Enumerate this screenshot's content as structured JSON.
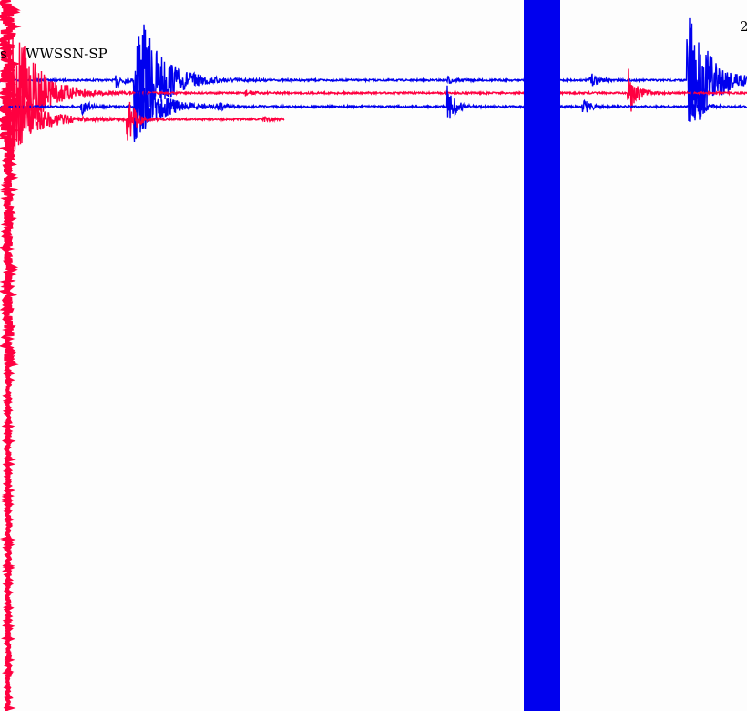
{
  "chart_data": {
    "type": "line",
    "title": "",
    "station_label": "WWSSN-SP",
    "left_fragment": "s",
    "corner_label": "2",
    "series_colors": [
      "#0000ee",
      "#ff0040"
    ],
    "grid": false,
    "traces": [
      {
        "color": "#0000ee"
      },
      {
        "color": "#ff0040"
      },
      {
        "color": "#0000ee"
      },
      {
        "color": "#ff0040"
      }
    ]
  }
}
